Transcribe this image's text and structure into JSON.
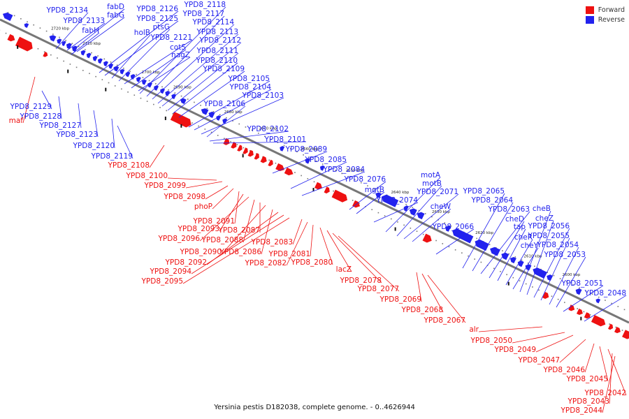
{
  "caption": "Yersinia pestis D182038, complete genome. - 0..4626944",
  "legend": [
    {
      "label": "Forward",
      "color": "#ee1111"
    },
    {
      "label": "Reverse",
      "color": "#2222ee"
    }
  ],
  "colors": {
    "forward": "#ee1111",
    "reverse": "#2222ee",
    "backbone": "#777777"
  },
  "ticks": [
    "2720 kbp",
    "2710 kbp",
    "2700 kbp",
    "2690 kbp",
    "2680 kbp",
    "2670 kbp",
    "2660 kbp",
    "2650 kbp",
    "2640 kbp",
    "2630 kbp",
    "2620 kbp",
    "2610 kbp",
    "2600 kbp"
  ],
  "reverse_labels": [
    "YPD8_2134",
    "fabD",
    "fabG",
    "YPD8_2133",
    "fabH",
    "YPD8_2126",
    "YPD8_2125",
    "holB",
    "ptsG",
    "YPD8_2121",
    "cotS",
    "nagZ",
    "YPD8_2118",
    "YPD8_2117",
    "YPD8_2114",
    "YPD8_2113",
    "YPD8_2112",
    "YPD8_2111",
    "YPD8_2110",
    "YPD8_2109",
    "YPD8_2105",
    "YPD8_2104",
    "YPD8_2103",
    "YPD8_2106",
    "YPD8_2102",
    "YPD8_2101",
    "YPD8_2089",
    "YPD8_2085",
    "YPD8_2084",
    "YPD8_2076",
    "mgtB",
    "YPD8_2074",
    "motA",
    "motB",
    "YPD8_2071",
    "cheW",
    "YPD8_2066",
    "YPD8_2065",
    "YPD8_2064",
    "YPD8_2063",
    "cheD",
    "tap",
    "cheR",
    "cheY",
    "cheB",
    "cheZ",
    "YPD8_2056",
    "YPD8_2055",
    "YPD8_2054",
    "YPD8_2053",
    "YPD8_2051",
    "YPD8_2048",
    "YPD8_2129",
    "YPD8_2128",
    "YPD8_2127",
    "YPD8_2123",
    "YPD8_2120",
    "YPD8_2119"
  ],
  "forward_labels": [
    "maf",
    "YPD8_2108",
    "YPD8_2100",
    "YPD8_2099",
    "YPD8_2098",
    "phoP",
    "YPD8_2091",
    "YPD8_2093",
    "YPD8_2096",
    "YPD8_2088",
    "YPD8_2087",
    "YPD8_2090",
    "YPD8_2086",
    "YPD8_2092",
    "YPD8_2094",
    "YPD8_2095",
    "YPD8_2083",
    "YPD8_2082",
    "YPD8_2081",
    "YPD8_2080",
    "lacZ",
    "YPD8_2078",
    "YPD8_2077",
    "YPD8_2069",
    "YPD8_2068",
    "YPD8_2067",
    "alr",
    "YPD8_2050",
    "YPD8_2049",
    "YPD8_2047",
    "YPD8_2046",
    "YPD8_2045",
    "YPD8_2042",
    "YPD8_2043",
    "YPD8_2044"
  ]
}
